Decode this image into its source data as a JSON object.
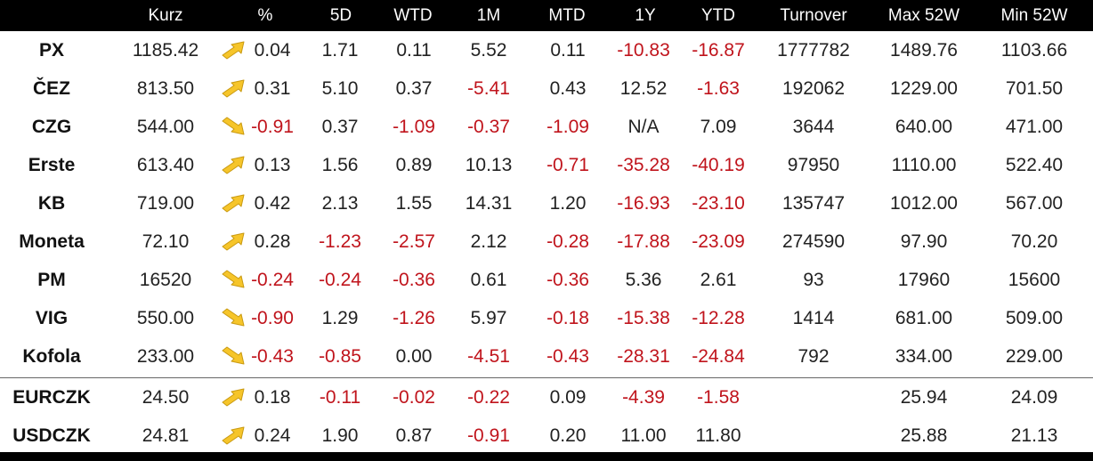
{
  "colors": {
    "negative": "#c0141c",
    "positive": "#222222",
    "header_bg": "#000000",
    "header_text": "#ffffff",
    "arrow_fill": "#f6c52a"
  },
  "headers": [
    "",
    "Kurz",
    "%",
    "5D",
    "WTD",
    "1M",
    "MTD",
    "1Y",
    "YTD",
    "Turnover",
    "Max 52W",
    "Min 52W"
  ],
  "rows": [
    {
      "name": "PX",
      "kurz": "1185.42",
      "trend": "up-arrow-icon",
      "pct": "0.04",
      "d5": "1.71",
      "wtd": "0.11",
      "m1": "5.52",
      "mtd": "0.11",
      "y1": "-10.83",
      "ytd": "-16.87",
      "turnover": "1777782",
      "max52w": "1489.76",
      "min52w": "1103.66"
    },
    {
      "name": "ČEZ",
      "kurz": "813.50",
      "trend": "up-arrow-icon",
      "pct": "0.31",
      "d5": "5.10",
      "wtd": "0.37",
      "m1": "-5.41",
      "mtd": "0.43",
      "y1": "12.52",
      "ytd": "-1.63",
      "turnover": "192062",
      "max52w": "1229.00",
      "min52w": "701.50"
    },
    {
      "name": "CZG",
      "kurz": "544.00",
      "trend": "down-arrow-icon",
      "pct": "-0.91",
      "d5": "0.37",
      "wtd": "-1.09",
      "m1": "-0.37",
      "mtd": "-1.09",
      "y1": "N/A",
      "ytd": "7.09",
      "turnover": "3644",
      "max52w": "640.00",
      "min52w": "471.00"
    },
    {
      "name": "Erste",
      "kurz": "613.40",
      "trend": "up-arrow-icon",
      "pct": "0.13",
      "d5": "1.56",
      "wtd": "0.89",
      "m1": "10.13",
      "mtd": "-0.71",
      "y1": "-35.28",
      "ytd": "-40.19",
      "turnover": "97950",
      "max52w": "1110.00",
      "min52w": "522.40"
    },
    {
      "name": "KB",
      "kurz": "719.00",
      "trend": "up-arrow-icon",
      "pct": "0.42",
      "d5": "2.13",
      "wtd": "1.55",
      "m1": "14.31",
      "mtd": "1.20",
      "y1": "-16.93",
      "ytd": "-23.10",
      "turnover": "135747",
      "max52w": "1012.00",
      "min52w": "567.00"
    },
    {
      "name": "Moneta",
      "kurz": "72.10",
      "trend": "up-arrow-icon",
      "pct": "0.28",
      "d5": "-1.23",
      "wtd": "-2.57",
      "m1": "2.12",
      "mtd": "-0.28",
      "y1": "-17.88",
      "ytd": "-23.09",
      "turnover": "274590",
      "max52w": "97.90",
      "min52w": "70.20"
    },
    {
      "name": "PM",
      "kurz": "16520",
      "trend": "down-arrow-icon",
      "pct": "-0.24",
      "d5": "-0.24",
      "wtd": "-0.36",
      "m1": "0.61",
      "mtd": "-0.36",
      "y1": "5.36",
      "ytd": "2.61",
      "turnover": "93",
      "max52w": "17960",
      "min52w": "15600"
    },
    {
      "name": "VIG",
      "kurz": "550.00",
      "trend": "down-arrow-icon",
      "pct": "-0.90",
      "d5": "1.29",
      "wtd": "-1.26",
      "m1": "5.97",
      "mtd": "-0.18",
      "y1": "-15.38",
      "ytd": "-12.28",
      "turnover": "1414",
      "max52w": "681.00",
      "min52w": "509.00"
    },
    {
      "name": "Kofola",
      "kurz": "233.00",
      "trend": "down-arrow-icon",
      "pct": "-0.43",
      "d5": "-0.85",
      "wtd": "0.00",
      "m1": "-4.51",
      "mtd": "-0.43",
      "y1": "-28.31",
      "ytd": "-24.84",
      "turnover": "792",
      "max52w": "334.00",
      "min52w": "229.00"
    },
    {
      "name": "EURCZK",
      "kurz": "24.50",
      "trend": "up-arrow-icon",
      "pct": "0.18",
      "d5": "-0.11",
      "wtd": "-0.02",
      "m1": "-0.22",
      "mtd": "0.09",
      "y1": "-4.39",
      "ytd": "-1.58",
      "turnover": "",
      "max52w": "25.94",
      "min52w": "24.09"
    },
    {
      "name": "USDCZK",
      "kurz": "24.81",
      "trend": "up-arrow-icon",
      "pct": "0.24",
      "d5": "1.90",
      "wtd": "0.87",
      "m1": "-0.91",
      "mtd": "0.20",
      "y1": "11.00",
      "ytd": "11.80",
      "turnover": "",
      "max52w": "25.88",
      "min52w": "21.13"
    }
  ]
}
